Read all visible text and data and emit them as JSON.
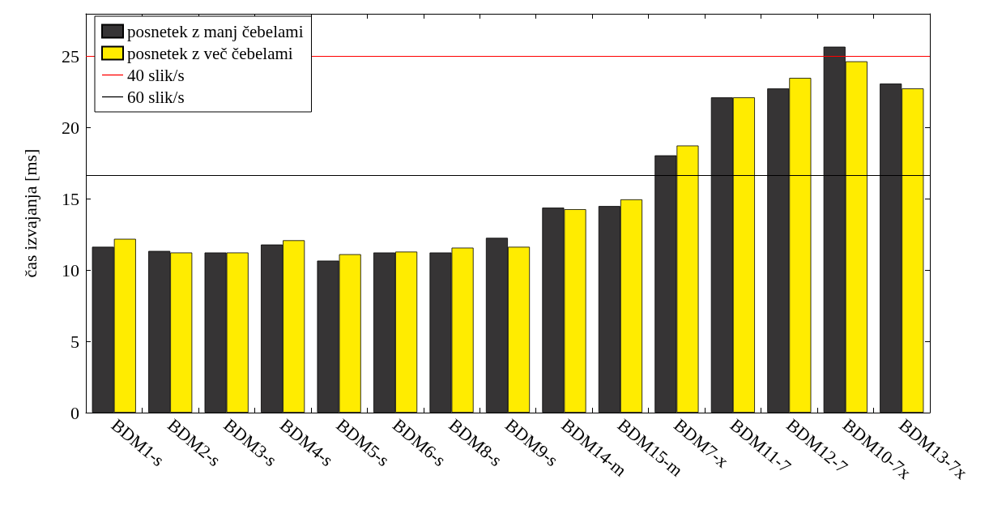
{
  "chart_data": {
    "type": "bar",
    "ylabel": "čas izvajanja [ms]",
    "categories": [
      "BDM1-s",
      "BDM2-s",
      "BDM3-s",
      "BDM4-s",
      "BDM5-s",
      "BDM6-s",
      "BDM8-s",
      "BDM9-s",
      "BDM14-m",
      "BDM15-m",
      "BDM7-x",
      "BDM11-7",
      "BDM12-7",
      "BDM10-7x",
      "BDM13-7x"
    ],
    "series": [
      {
        "name": "posnetek z manj čebelami",
        "color": "#363435",
        "values": [
          11.64,
          11.35,
          11.24,
          11.8,
          10.67,
          11.24,
          11.24,
          12.27,
          14.39,
          14.5,
          18.06,
          22.13,
          22.76,
          25.69,
          23.1
        ]
      },
      {
        "name": "posnetek z več čebelami",
        "color": "#ffec00",
        "values": [
          12.2,
          11.24,
          11.24,
          12.1,
          11.12,
          11.3,
          11.58,
          11.64,
          14.28,
          14.97,
          18.75,
          22.13,
          23.5,
          24.66,
          22.76
        ]
      }
    ],
    "ref_lines": [
      {
        "axis": "y",
        "value": 25,
        "label": "40 slik/s",
        "color": "#ff0000"
      },
      {
        "axis": "y",
        "value": 16.67,
        "label": "60 slik/s",
        "color": "#000000"
      }
    ],
    "ylim": [
      0,
      28
    ],
    "yticks": [
      0,
      5,
      10,
      15,
      20,
      25
    ],
    "grid": false,
    "legend": "top left"
  }
}
